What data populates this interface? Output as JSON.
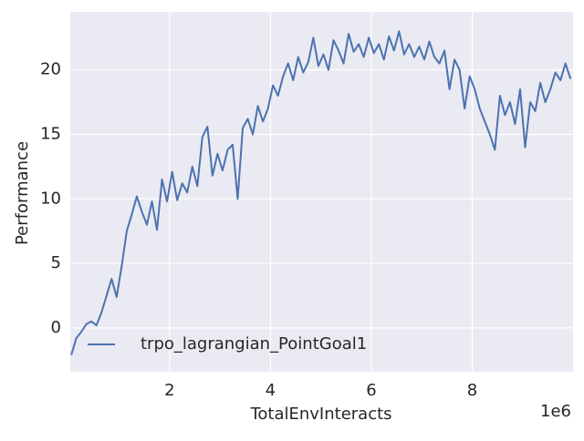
{
  "chart_data": {
    "type": "line",
    "x_label": "TotalEnvInteracts",
    "y_label": "Performance",
    "x_offset_label": "1e6",
    "x": [
      0.05,
      0.15,
      0.25,
      0.35,
      0.45,
      0.55,
      0.65,
      0.75,
      0.85,
      0.95,
      1.05,
      1.15,
      1.25,
      1.35,
      1.45,
      1.55,
      1.65,
      1.75,
      1.85,
      1.95,
      2.05,
      2.15,
      2.25,
      2.35,
      2.45,
      2.55,
      2.65,
      2.75,
      2.85,
      2.95,
      3.05,
      3.15,
      3.25,
      3.35,
      3.45,
      3.55,
      3.65,
      3.75,
      3.85,
      3.95,
      4.05,
      4.15,
      4.25,
      4.35,
      4.45,
      4.55,
      4.65,
      4.75,
      4.85,
      4.95,
      5.05,
      5.15,
      5.25,
      5.35,
      5.45,
      5.55,
      5.65,
      5.75,
      5.85,
      5.95,
      6.05,
      6.15,
      6.25,
      6.35,
      6.45,
      6.55,
      6.65,
      6.75,
      6.85,
      6.95,
      7.05,
      7.15,
      7.25,
      7.35,
      7.45,
      7.55,
      7.65,
      7.75,
      7.85,
      7.95,
      8.05,
      8.15,
      8.25,
      8.35,
      8.45,
      8.55,
      8.65,
      8.75,
      8.85,
      8.95,
      9.05,
      9.15,
      9.25,
      9.35,
      9.45,
      9.55,
      9.65,
      9.75,
      9.85,
      9.95
    ],
    "series": [
      {
        "name": "trpo_lagrangian_PointGoal1",
        "color": "#4c72b0",
        "values": [
          -2.1,
          -0.8,
          -0.3,
          0.3,
          0.5,
          0.2,
          1.2,
          2.5,
          3.8,
          2.4,
          4.8,
          7.5,
          8.8,
          10.2,
          9.0,
          8.0,
          9.8,
          7.6,
          11.5,
          9.8,
          12.1,
          9.9,
          11.2,
          10.5,
          12.5,
          11.0,
          14.8,
          15.6,
          11.8,
          13.5,
          12.2,
          13.8,
          14.2,
          10.0,
          15.5,
          16.2,
          15.0,
          17.2,
          16.0,
          17.0,
          18.8,
          18.0,
          19.5,
          20.5,
          19.2,
          21.0,
          19.8,
          20.6,
          22.5,
          20.3,
          21.2,
          20.0,
          22.3,
          21.5,
          20.5,
          22.8,
          21.4,
          22.0,
          21.0,
          22.5,
          21.3,
          22.0,
          20.8,
          22.6,
          21.5,
          23.0,
          21.2,
          22.0,
          21.0,
          21.8,
          20.8,
          22.2,
          21.0,
          20.5,
          21.5,
          18.5,
          20.8,
          20.0,
          17.0,
          19.5,
          18.5,
          17.0,
          16.0,
          15.0,
          13.8,
          18.0,
          16.5,
          17.5,
          15.8,
          18.5,
          14.0,
          17.5,
          16.8,
          19.0,
          17.5,
          18.5,
          19.8,
          19.2,
          20.5,
          19.3
        ]
      }
    ],
    "xlim": [
      0.03,
      10.0
    ],
    "ylim": [
      -3.4,
      24.5
    ],
    "xticks": [
      2,
      4,
      6,
      8
    ],
    "yticks": [
      0,
      5,
      10,
      15,
      20
    ],
    "grid": true,
    "legend_position": "lower-left"
  }
}
